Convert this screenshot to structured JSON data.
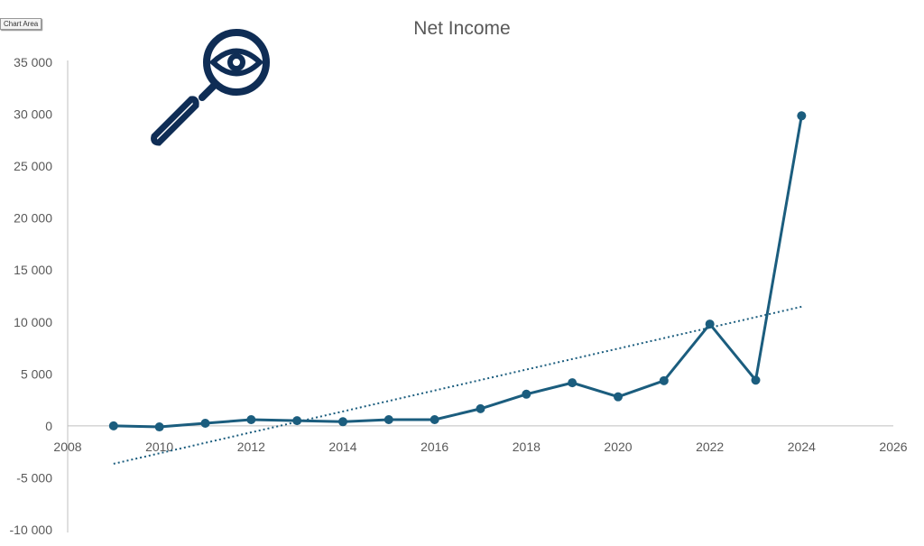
{
  "tooltip": "Chart Area",
  "icon": "magnifier-eye-icon",
  "colors": {
    "line": "#1b5d7e",
    "icon": "#0f2d55",
    "axis": "#bfbfbf",
    "text": "#595959"
  },
  "chart_data": {
    "type": "line",
    "title": "Net Income",
    "xlabel": "",
    "ylabel": "",
    "xlim": [
      2008,
      2026
    ],
    "ylim": [
      -10000,
      35000
    ],
    "x_ticks": [
      2008,
      2010,
      2012,
      2014,
      2016,
      2018,
      2020,
      2022,
      2024,
      2026
    ],
    "y_ticks": [
      -10000,
      -5000,
      0,
      5000,
      10000,
      15000,
      20000,
      25000,
      30000,
      35000
    ],
    "y_tick_labels": [
      "-10 000",
      "-5 000",
      "0",
      "5 000",
      "10 000",
      "15 000",
      "20 000",
      "25 000",
      "30 000",
      "35 000"
    ],
    "grid": false,
    "legend": "none",
    "series": [
      {
        "x": [
          2009,
          2010,
          2011,
          2012,
          2013,
          2014,
          2015,
          2016,
          2017,
          2018,
          2019,
          2020,
          2021,
          2022,
          2023,
          2024
        ],
        "values": [
          0,
          -100,
          250,
          600,
          500,
          400,
          600,
          600,
          1650,
          3050,
          4150,
          2800,
          4350,
          9800,
          4400,
          29850
        ],
        "markers": true
      }
    ],
    "trendline": {
      "type": "linear",
      "style": "dotted",
      "x": [
        2009,
        2024
      ],
      "values": [
        -3650,
        11470
      ]
    }
  }
}
